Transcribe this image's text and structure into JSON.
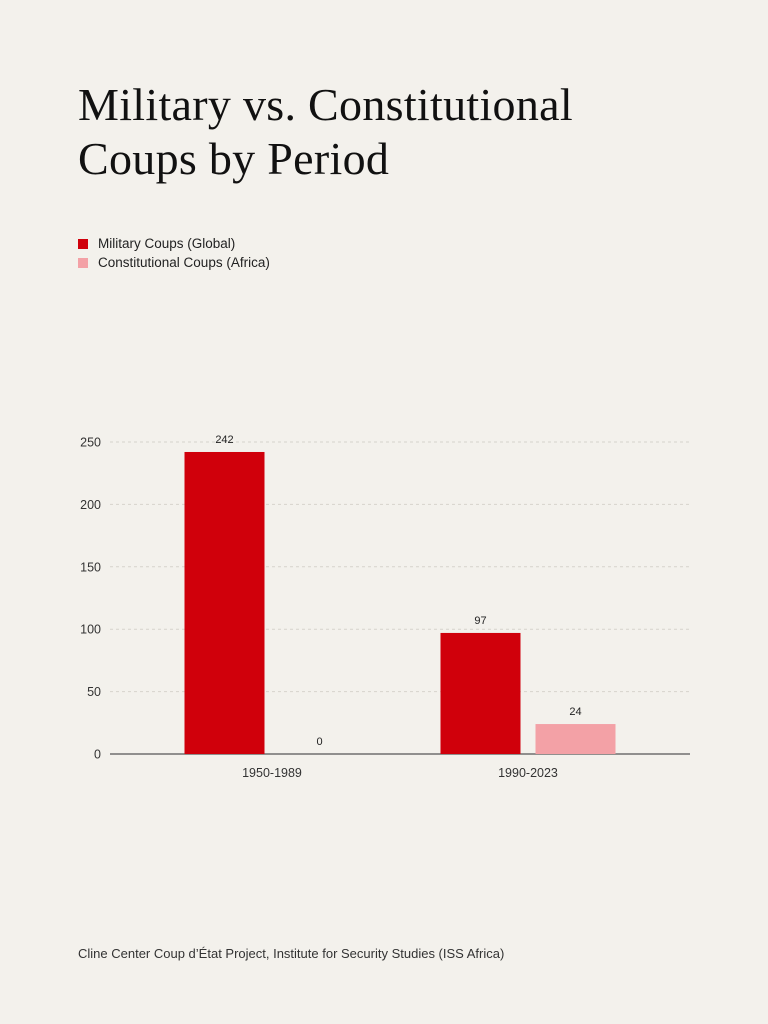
{
  "title": "Military vs. Constitutional Coups by Period",
  "source": "Cline Center Coup d’État Project, Institute for Security Studies (ISS Africa)",
  "chart_data": {
    "type": "bar",
    "title": "Military vs. Constitutional Coups by Period",
    "xlabel": "",
    "ylabel": "",
    "categories": [
      "1950-1989",
      "1990-2023"
    ],
    "series": [
      {
        "name": "Military Coups (Global)",
        "values": [
          242,
          97
        ],
        "color": "#d0000b"
      },
      {
        "name": "Constitutional Coups (Africa)",
        "values": [
          0,
          24
        ],
        "color": "#f3a1a6"
      }
    ],
    "ylim": [
      0,
      250
    ],
    "yticks": [
      0,
      50,
      100,
      150,
      200,
      250
    ],
    "grid": true,
    "legend": "top-left",
    "data_labels": true
  },
  "colors": {
    "background": "#f3f1ec",
    "grid": "#d6d3cc",
    "axis": "#555555"
  }
}
